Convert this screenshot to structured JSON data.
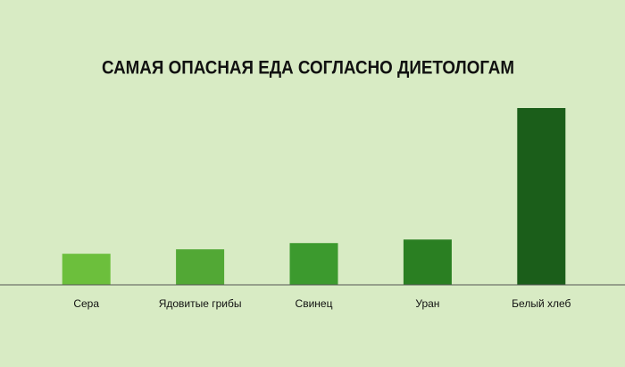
{
  "chart_data": {
    "type": "bar",
    "title": "САМАЯ ОПАСНАЯ ЕДА СОГЛАСНО ДИЕТОЛОГАМ",
    "categories": [
      "Сера",
      "Ядовитые грибы",
      "Свинец",
      "Уран",
      "Белый хлеб"
    ],
    "values": [
      35,
      40,
      47,
      51,
      199
    ],
    "colors": [
      "#6cbf3c",
      "#52a835",
      "#3c9a2e",
      "#2a7f22",
      "#1b5e1a"
    ],
    "ylim": [
      0,
      200
    ]
  }
}
